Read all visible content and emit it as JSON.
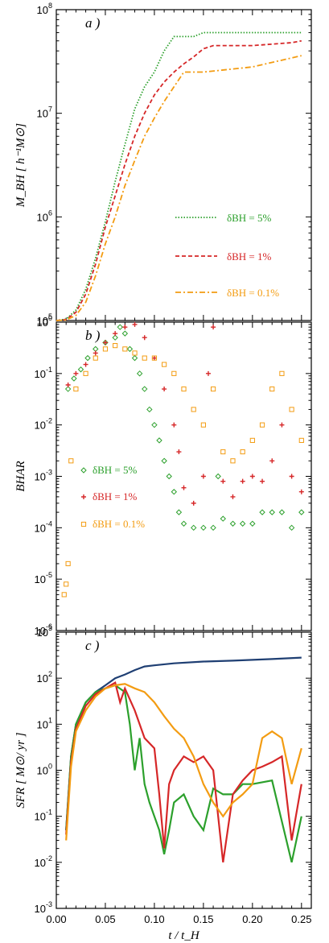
{
  "chart_data": [
    {
      "type": "line",
      "panel_label": "a )",
      "ylabel": "M_BH [ h⁻¹M⊙]",
      "yscale": "log",
      "ylim_exp": [
        5,
        8
      ],
      "ytick_labels": [
        {
          "base": "10",
          "exp": "5"
        },
        {
          "base": "10",
          "exp": "6"
        },
        {
          "base": "10",
          "exp": "7"
        },
        {
          "base": "10",
          "exp": "8"
        }
      ],
      "xlim": [
        0,
        0.26
      ],
      "legend_position": "center-right",
      "series": [
        {
          "name": "δBH = 5%",
          "color": "#2ca02c",
          "style": "dotted",
          "x": [
            0.0,
            0.01,
            0.02,
            0.03,
            0.04,
            0.05,
            0.06,
            0.07,
            0.08,
            0.09,
            0.1,
            0.11,
            0.12,
            0.13,
            0.14,
            0.15,
            0.2,
            0.25
          ],
          "y": [
            100000,
            103000,
            126000,
            200000,
            400000,
            900000,
            2200000,
            5000000,
            11000000,
            18000000,
            25000000,
            40000000,
            55000000,
            55000000,
            55000000,
            60000000,
            60000000,
            60000000
          ]
        },
        {
          "name": "δBH = 1%",
          "color": "#d62728",
          "style": "dashed",
          "x": [
            0.0,
            0.01,
            0.02,
            0.03,
            0.04,
            0.05,
            0.06,
            0.07,
            0.08,
            0.09,
            0.1,
            0.11,
            0.12,
            0.13,
            0.14,
            0.15,
            0.16,
            0.2,
            0.24,
            0.25
          ],
          "y": [
            100000,
            102000,
            120000,
            180000,
            350000,
            800000,
            1600000,
            3200000,
            6000000,
            10000000,
            15000000,
            20000000,
            25000000,
            30000000,
            35000000,
            42000000,
            45000000,
            45000000,
            48000000,
            50000000
          ]
        },
        {
          "name": "δBH = 0.1%",
          "color": "#f39c12",
          "style": "dashdot",
          "x": [
            0.0,
            0.01,
            0.02,
            0.03,
            0.04,
            0.05,
            0.06,
            0.07,
            0.08,
            0.09,
            0.1,
            0.11,
            0.12,
            0.13,
            0.15,
            0.2,
            0.25
          ],
          "y": [
            100000,
            101000,
            112000,
            150000,
            270000,
            550000,
            1000000,
            2000000,
            3500000,
            6000000,
            9000000,
            13000000,
            18000000,
            25000000,
            25000000,
            28000000,
            36000000
          ]
        }
      ]
    },
    {
      "type": "scatter",
      "panel_label": "b )",
      "ylabel": "BHAR",
      "yscale": "log",
      "ylim_exp": [
        -6,
        0
      ],
      "ytick_labels": [
        {
          "base": "10",
          "exp": "0"
        },
        {
          "base": "10",
          "exp": "-1"
        },
        {
          "base": "10",
          "exp": "-2"
        },
        {
          "base": "10",
          "exp": "-3"
        },
        {
          "base": "10",
          "exp": "-4"
        },
        {
          "base": "10",
          "exp": "-5"
        },
        {
          "base": "10",
          "exp": "-6"
        }
      ],
      "xlim": [
        0,
        0.26
      ],
      "legend_position": "lower-left",
      "series": [
        {
          "name": "δBH = 5%",
          "color": "#2ca02c",
          "marker": "diamond",
          "x": [
            0.012,
            0.018,
            0.025,
            0.032,
            0.04,
            0.05,
            0.06,
            0.065,
            0.07,
            0.075,
            0.08,
            0.085,
            0.09,
            0.095,
            0.1,
            0.105,
            0.11,
            0.115,
            0.12,
            0.125,
            0.13,
            0.14,
            0.15,
            0.16,
            0.165,
            0.17,
            0.18,
            0.19,
            0.2,
            0.21,
            0.22,
            0.23,
            0.24,
            0.25
          ],
          "y": [
            0.05,
            0.08,
            0.12,
            0.2,
            0.3,
            0.4,
            0.5,
            0.8,
            0.6,
            0.3,
            0.2,
            0.1,
            0.05,
            0.02,
            0.01,
            0.005,
            0.002,
            0.001,
            0.0005,
            0.0002,
            0.00012,
            0.0001,
            0.0001,
            0.0001,
            0.001,
            0.00015,
            0.00012,
            0.00012,
            0.00012,
            0.0002,
            0.0002,
            0.0002,
            0.0001,
            0.0002
          ]
        },
        {
          "name": "δBH = 1%",
          "color": "#d62728",
          "marker": "plus",
          "x": [
            0.012,
            0.02,
            0.03,
            0.04,
            0.05,
            0.06,
            0.07,
            0.08,
            0.09,
            0.1,
            0.11,
            0.12,
            0.125,
            0.13,
            0.14,
            0.15,
            0.155,
            0.16,
            0.17,
            0.18,
            0.19,
            0.2,
            0.21,
            0.22,
            0.23,
            0.24,
            0.25
          ],
          "y": [
            0.06,
            0.1,
            0.15,
            0.25,
            0.4,
            0.6,
            0.8,
            0.9,
            0.5,
            0.2,
            0.05,
            0.01,
            0.003,
            0.0006,
            0.0003,
            0.001,
            0.1,
            0.8,
            0.0008,
            0.0004,
            0.0008,
            0.001,
            0.0008,
            0.002,
            0.01,
            0.001,
            0.0005
          ]
        },
        {
          "name": "δBH = 0.1%",
          "color": "#f39c12",
          "marker": "square",
          "x": [
            0.008,
            0.01,
            0.012,
            0.015,
            0.02,
            0.03,
            0.04,
            0.05,
            0.06,
            0.07,
            0.08,
            0.09,
            0.1,
            0.11,
            0.12,
            0.13,
            0.14,
            0.15,
            0.16,
            0.17,
            0.18,
            0.19,
            0.2,
            0.21,
            0.22,
            0.23,
            0.24,
            0.25
          ],
          "y": [
            5e-06,
            8e-06,
            2e-05,
            0.002,
            0.05,
            0.1,
            0.2,
            0.3,
            0.35,
            0.3,
            0.25,
            0.2,
            0.2,
            0.15,
            0.1,
            0.05,
            0.02,
            0.01,
            0.05,
            0.003,
            0.002,
            0.003,
            0.005,
            0.01,
            0.05,
            0.1,
            0.02,
            0.005
          ]
        }
      ]
    },
    {
      "type": "line",
      "panel_label": "c )",
      "ylabel": "SFR [ M⊙/ yr ]",
      "yscale": "log",
      "ylim_exp": [
        -3,
        3
      ],
      "ytick_labels": [
        {
          "base": "10",
          "exp": "3"
        },
        {
          "base": "10",
          "exp": "2"
        },
        {
          "base": "10",
          "exp": "1"
        },
        {
          "base": "10",
          "exp": "0"
        },
        {
          "base": "10",
          "exp": "-1"
        },
        {
          "base": "10",
          "exp": "-2"
        },
        {
          "base": "10",
          "exp": "-3"
        }
      ],
      "xlim": [
        0,
        0.26
      ],
      "xticks": [
        0.0,
        0.05,
        0.1,
        0.15,
        0.2,
        0.25
      ],
      "xtick_labels": [
        "0.00",
        "0.05",
        "0.10",
        "0.15",
        "0.20",
        "0.25"
      ],
      "xlabel": "t / t_H",
      "series": [
        {
          "color": "#1f3f73",
          "x": [
            0.01,
            0.015,
            0.02,
            0.03,
            0.04,
            0.05,
            0.06,
            0.07,
            0.08,
            0.09,
            0.1,
            0.12,
            0.15,
            0.18,
            0.2,
            0.22,
            0.25
          ],
          "y": [
            0.05,
            2,
            10,
            30,
            50,
            70,
            100,
            120,
            150,
            180,
            190,
            210,
            230,
            240,
            250,
            260,
            280
          ]
        },
        {
          "color": "#2ca02c",
          "x": [
            0.01,
            0.015,
            0.02,
            0.03,
            0.04,
            0.05,
            0.06,
            0.07,
            0.075,
            0.08,
            0.085,
            0.09,
            0.095,
            0.1,
            0.105,
            0.11,
            0.115,
            0.12,
            0.13,
            0.14,
            0.15,
            0.16,
            0.17,
            0.18,
            0.19,
            0.2,
            0.22,
            0.24,
            0.25
          ],
          "y": [
            0.05,
            2,
            10,
            30,
            50,
            60,
            70,
            50,
            10,
            1,
            5,
            0.5,
            0.2,
            0.1,
            0.05,
            0.015,
            0.05,
            0.2,
            0.3,
            0.1,
            0.05,
            0.4,
            0.3,
            0.3,
            0.5,
            0.5,
            0.6,
            0.01,
            0.1
          ]
        },
        {
          "color": "#d62728",
          "x": [
            0.01,
            0.015,
            0.02,
            0.03,
            0.04,
            0.05,
            0.06,
            0.065,
            0.07,
            0.08,
            0.09,
            0.1,
            0.105,
            0.11,
            0.115,
            0.12,
            0.13,
            0.14,
            0.15,
            0.16,
            0.17,
            0.18,
            0.19,
            0.2,
            0.21,
            0.22,
            0.23,
            0.24,
            0.25
          ],
          "y": [
            0.04,
            1.5,
            8,
            25,
            45,
            60,
            80,
            30,
            60,
            20,
            5,
            3,
            0.3,
            0.02,
            0.5,
            1,
            2,
            1.5,
            2,
            1,
            0.01,
            0.3,
            0.6,
            1,
            1.2,
            1.5,
            2,
            0.03,
            0.5
          ]
        },
        {
          "color": "#f39c12",
          "x": [
            0.01,
            0.015,
            0.02,
            0.03,
            0.04,
            0.05,
            0.06,
            0.07,
            0.08,
            0.09,
            0.1,
            0.11,
            0.12,
            0.13,
            0.14,
            0.15,
            0.16,
            0.17,
            0.18,
            0.19,
            0.2,
            0.21,
            0.22,
            0.23,
            0.24,
            0.25
          ],
          "y": [
            0.03,
            1.2,
            7,
            20,
            40,
            60,
            70,
            75,
            60,
            50,
            30,
            15,
            8,
            5,
            2,
            0.5,
            0.2,
            0.1,
            0.2,
            0.3,
            0.5,
            5,
            7,
            5,
            0.5,
            3
          ]
        }
      ]
    }
  ]
}
